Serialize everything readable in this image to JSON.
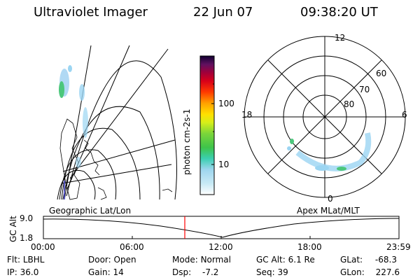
{
  "header": {
    "instrument": "Ultraviolet Imager",
    "date": "22 Jun 07",
    "time": "09:38:20 UT"
  },
  "colorbar": {
    "label": "photon cm-2s-1",
    "ticks": [
      "100",
      "10"
    ]
  },
  "polar_plot": {
    "mlt_labels": {
      "top": "12",
      "left": "18",
      "right": "6",
      "bottom": "0"
    },
    "lat_labels": [
      "60",
      "70",
      "80"
    ]
  },
  "panel_labels": {
    "left": "Geographic Lat/Lon",
    "right": "Apex MLat/MLT"
  },
  "altitude_plot": {
    "axis_label": "GC Alt",
    "ymax": "9.0",
    "ymin": "1.8",
    "xticks": [
      "00:00",
      "06:00",
      "12:00",
      "18:00",
      "23:59"
    ]
  },
  "info": {
    "row1": [
      {
        "label": "Flt:",
        "value": "LBHL"
      },
      {
        "label": "Door:",
        "value": "Open"
      },
      {
        "label": "Mode:",
        "value": "Normal"
      },
      {
        "label": "GC Alt:",
        "value": "6.1 Re"
      },
      {
        "label": "GLat:",
        "value": "-68.3"
      }
    ],
    "row2": [
      {
        "label": "IP:",
        "value": "36.0"
      },
      {
        "label": "Gain:",
        "value": "14"
      },
      {
        "label": "Dsp:",
        "value": "-7.2"
      },
      {
        "label": "Seq:",
        "value": "39"
      },
      {
        "label": "GLon:",
        "value": "227.6"
      }
    ]
  },
  "colors": {
    "cursor": "#ff0000"
  }
}
